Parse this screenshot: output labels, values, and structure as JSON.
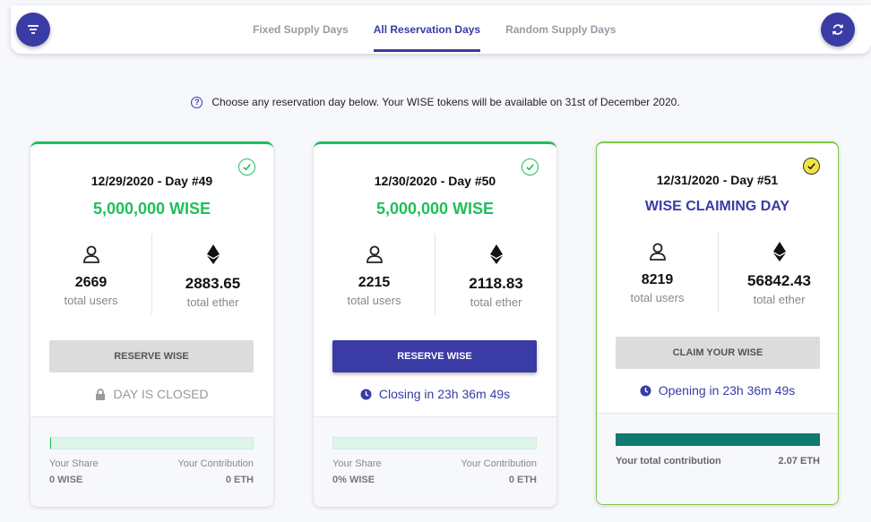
{
  "header": {
    "tabs": [
      {
        "label": "Fixed Supply Days",
        "active": false
      },
      {
        "label": "All Reservation Days",
        "active": true
      },
      {
        "label": "Random Supply Days",
        "active": false
      }
    ]
  },
  "notice": {
    "text": "Choose any reservation day below. Your WISE tokens will be available on 31st of December 2020."
  },
  "cards": [
    {
      "date": "12/29/2020 - Day #49",
      "amount": "5,000,000 WISE",
      "users": "2669",
      "users_label": "total users",
      "ether": "2883.65",
      "ether_label": "total ether",
      "button_label": "RESERVE WISE",
      "status": "DAY IS CLOSED",
      "share_label": "Your Share",
      "contribution_label": "Your Contribution",
      "share_value": "0 WISE",
      "contribution_value": "0 ETH",
      "progress": 0.004
    },
    {
      "date": "12/30/2020 - Day #50",
      "amount": "5,000,000 WISE",
      "users": "2215",
      "users_label": "total users",
      "ether": "2118.83",
      "ether_label": "total ether",
      "button_label": "RESERVE WISE",
      "status": "Closing in 23h 36m 49s",
      "share_label": "Your Share",
      "contribution_label": "Your Contribution",
      "share_value": "0% WISE",
      "contribution_value": "0 ETH",
      "progress": 0
    },
    {
      "date": "12/31/2020 - Day #51",
      "amount": "WISE CLAIMING DAY",
      "users": "8219",
      "users_label": "total users",
      "ether": "56842.43",
      "ether_label": "total ether",
      "button_label": "CLAIM YOUR WISE",
      "status": "Opening in 23h 36m 49s",
      "contribution_label": "Your total contribution",
      "contribution_value": "2.07 ETH",
      "progress": 1
    }
  ],
  "colors": {
    "primary": "#3a3ba5",
    "success": "#1fbf5a",
    "claim_bar": "#0e7a72"
  },
  "icons": [
    "filter-icon",
    "refresh-icon",
    "help-icon",
    "check-icon",
    "user-icon",
    "ethereum-icon",
    "lock-icon",
    "clock-icon"
  ]
}
